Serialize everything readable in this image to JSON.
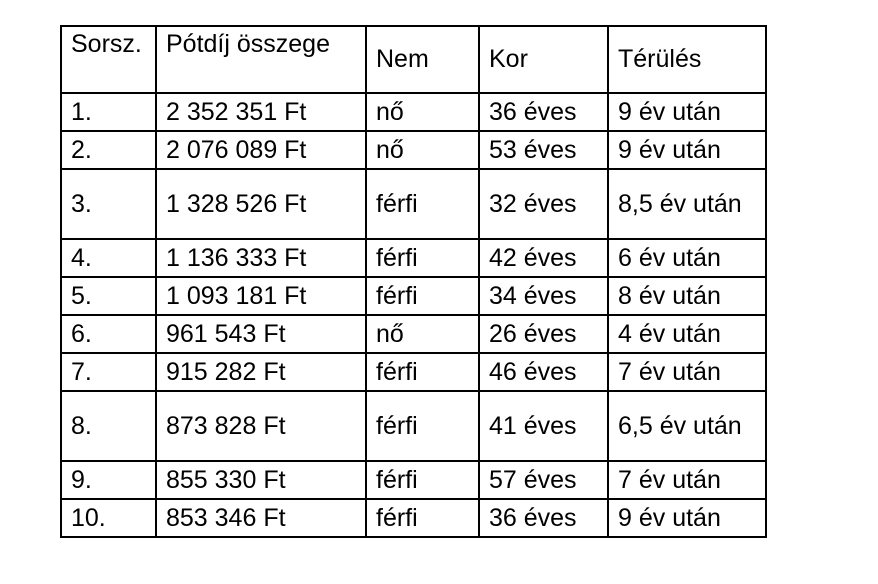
{
  "table": {
    "headers": [
      "Sorsz.",
      "Pótdíj összege",
      "Nem",
      "Kor",
      "Térülés"
    ],
    "rows": [
      [
        "1.",
        "2 352 351 Ft",
        "nő",
        "36 éves",
        "9 év után"
      ],
      [
        "2.",
        "2 076 089 Ft",
        "nő",
        "53 éves",
        "9 év után"
      ],
      [
        "3.",
        "1 328 526 Ft",
        "férfi",
        "32 éves",
        "8,5 év után"
      ],
      [
        "4.",
        "1 136 333 Ft",
        "férfi",
        "42 éves",
        "6 év után"
      ],
      [
        "5.",
        "1 093 181 Ft",
        "férfi",
        "34 éves",
        "8 év után"
      ],
      [
        "6.",
        "961 543 Ft",
        "nő",
        "26 éves",
        "4 év után"
      ],
      [
        "7.",
        "915 282 Ft",
        "férfi",
        "46 éves",
        "7 év után"
      ],
      [
        "8.",
        "873 828 Ft",
        "férfi",
        "41 éves",
        "6,5 év után"
      ],
      [
        "9.",
        "855 330 Ft",
        "férfi",
        "57 éves",
        "7 év után"
      ],
      [
        "10.",
        "853 346 Ft",
        "férfi",
        "36 éves",
        "9 év után"
      ]
    ]
  }
}
